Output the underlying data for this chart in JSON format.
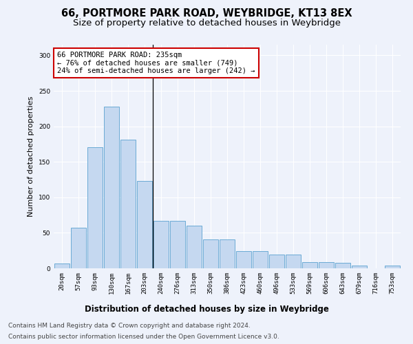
{
  "title1": "66, PORTMORE PARK ROAD, WEYBRIDGE, KT13 8EX",
  "title2": "Size of property relative to detached houses in Weybridge",
  "xlabel": "Distribution of detached houses by size in Weybridge",
  "ylabel": "Number of detached properties",
  "bar_values": [
    7,
    57,
    171,
    228,
    181,
    123,
    67,
    67,
    60,
    41,
    41,
    24,
    24,
    19,
    19,
    9,
    9,
    8,
    4,
    0,
    4
  ],
  "bar_labels": [
    "20sqm",
    "57sqm",
    "93sqm",
    "130sqm",
    "167sqm",
    "203sqm",
    "240sqm",
    "276sqm",
    "313sqm",
    "350sqm",
    "386sqm",
    "423sqm",
    "460sqm",
    "496sqm",
    "533sqm",
    "569sqm",
    "606sqm",
    "643sqm",
    "679sqm",
    "716sqm",
    "753sqm"
  ],
  "bar_color": "#c5d8f0",
  "bar_edge_color": "#6aaad4",
  "annotation_text": "66 PORTMORE PARK ROAD: 235sqm\n← 76% of detached houses are smaller (749)\n24% of semi-detached houses are larger (242) →",
  "annotation_box_color": "#ffffff",
  "annotation_box_edge_color": "#cc0000",
  "vline_x_idx": 5.5,
  "ylim": [
    0,
    315
  ],
  "yticks": [
    0,
    50,
    100,
    150,
    200,
    250,
    300
  ],
  "footer1": "Contains HM Land Registry data © Crown copyright and database right 2024.",
  "footer2": "Contains public sector information licensed under the Open Government Licence v3.0.",
  "background_color": "#eef2fb",
  "grid_color": "#ffffff",
  "title1_fontsize": 10.5,
  "title2_fontsize": 9.5,
  "xlabel_fontsize": 8.5,
  "ylabel_fontsize": 8,
  "annotation_fontsize": 7.5,
  "footer_fontsize": 6.5
}
